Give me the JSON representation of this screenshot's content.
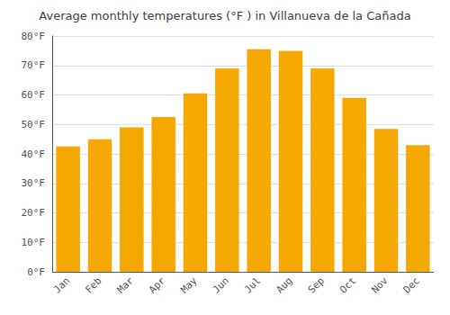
{
  "chart_data": {
    "type": "bar",
    "title": "Average monthly temperatures (°F ) in Villanueva de la Cañada",
    "categories": [
      "Jan",
      "Feb",
      "Mar",
      "Apr",
      "May",
      "Jun",
      "Jul",
      "Aug",
      "Sep",
      "Oct",
      "Nov",
      "Dec"
    ],
    "values": [
      42.5,
      45.0,
      49.0,
      52.5,
      60.5,
      69.0,
      75.5,
      75.0,
      69.0,
      59.0,
      48.5,
      43.0
    ],
    "color": "#F5A800",
    "ylim": [
      0,
      80
    ],
    "yticks": [
      {
        "value": 0,
        "label": "0°F"
      },
      {
        "value": 10,
        "label": "10°F"
      },
      {
        "value": 20,
        "label": "20°F"
      },
      {
        "value": 30,
        "label": "30°F"
      },
      {
        "value": 40,
        "label": "40°F"
      },
      {
        "value": 50,
        "label": "50°F"
      },
      {
        "value": 60,
        "label": "60°F"
      },
      {
        "value": 70,
        "label": "70°F"
      },
      {
        "value": 80,
        "label": "80°F"
      }
    ],
    "grid": true
  }
}
